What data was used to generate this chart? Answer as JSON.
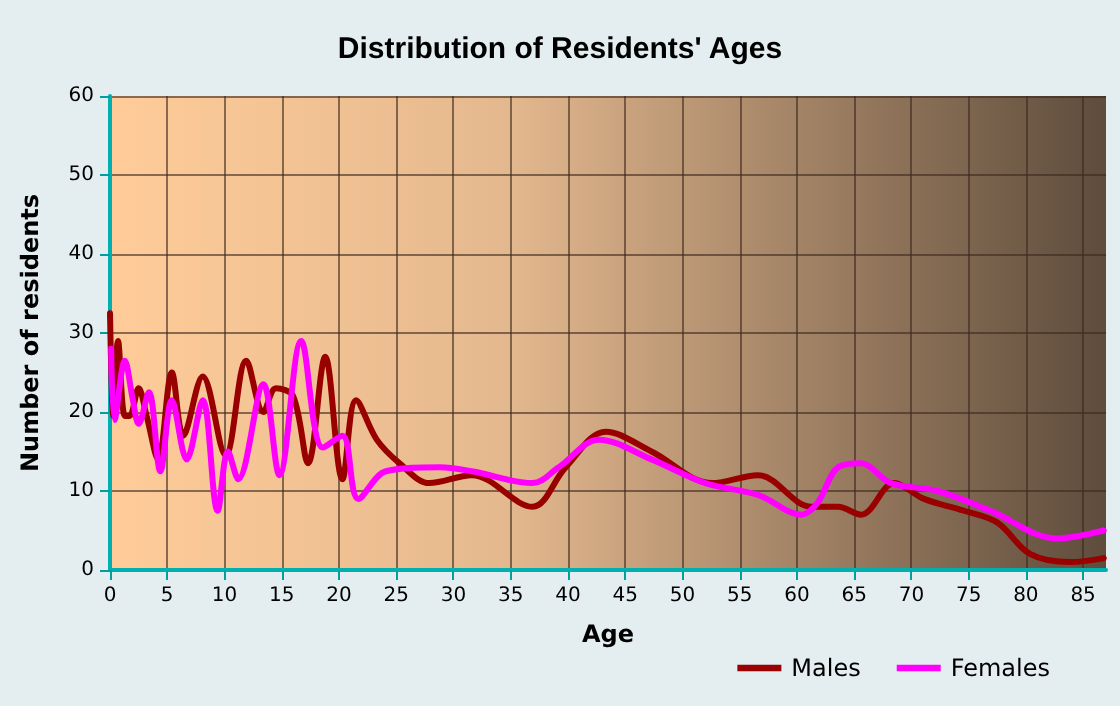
{
  "chart_data": {
    "type": "line",
    "title": "Distribution of Residents' Ages",
    "xlabel": "Age",
    "ylabel": "Number of residents",
    "xlim": [
      0,
      87
    ],
    "xticks": [
      0,
      5,
      10,
      15,
      20,
      25,
      30,
      35,
      40,
      45,
      50,
      55,
      60,
      65,
      70,
      75,
      80,
      85
    ],
    "ylim": [
      0,
      60
    ],
    "yticks": [
      0,
      10,
      20,
      30,
      40,
      50,
      60
    ],
    "grid": true,
    "legend": "bottom right",
    "marker": "none",
    "line_style": "solid",
    "series": [
      {
        "name": "Males",
        "color": "#990000",
        "x": [
          0,
          0.3,
          0.7,
          1.3,
          1.7,
          2.5,
          3.2,
          4.2,
          5.4,
          6.4,
          8.1,
          10.1,
          11.9,
          13.4,
          14.5,
          16,
          17.3,
          18.8,
          20.3,
          21.5,
          23.3,
          25.3,
          27.9,
          31.6,
          36.9,
          39.8,
          43.3,
          47.3,
          52.6,
          56.6,
          61.3,
          63.6,
          65.6,
          68.5,
          71.1,
          74.6,
          77.5,
          80.4,
          83.9,
          86.8
        ],
        "values": [
          32.5,
          19.5,
          29,
          19.5,
          19.5,
          23,
          19.5,
          14,
          25,
          17,
          24.5,
          14.5,
          26.5,
          20,
          23,
          22,
          13.5,
          27,
          11.5,
          21.5,
          16.5,
          13.5,
          11,
          12,
          8,
          13,
          17.5,
          15,
          11,
          12,
          8,
          8,
          7,
          11,
          9,
          7.5,
          6,
          2,
          1,
          1.5
        ]
      },
      {
        "name": "Females",
        "color": "#ff00ff",
        "x": [
          0.1,
          0.4,
          1.3,
          2,
          2.5,
          3.4,
          4.4,
          5.4,
          6.7,
          8.1,
          9.4,
          10.3,
          11.2,
          13.4,
          14.8,
          16.7,
          18.6,
          20.3,
          21.7,
          24.1,
          28.8,
          31.6,
          36.9,
          39.2,
          42.7,
          47.3,
          52,
          56.6,
          60.4,
          61.8,
          63.6,
          65.6,
          68.2,
          72.3,
          76.9,
          82.7,
          86.8
        ],
        "values": [
          28,
          19,
          26.5,
          21.5,
          18.5,
          22.5,
          12.5,
          21.5,
          14,
          21.5,
          7.5,
          15,
          11.5,
          23.5,
          12,
          29,
          15.5,
          17,
          9,
          12.5,
          13,
          12.5,
          11,
          13,
          16.5,
          14,
          11,
          9.5,
          7,
          8.5,
          13,
          13.5,
          11,
          10,
          7.5,
          4,
          5
        ]
      }
    ]
  }
}
